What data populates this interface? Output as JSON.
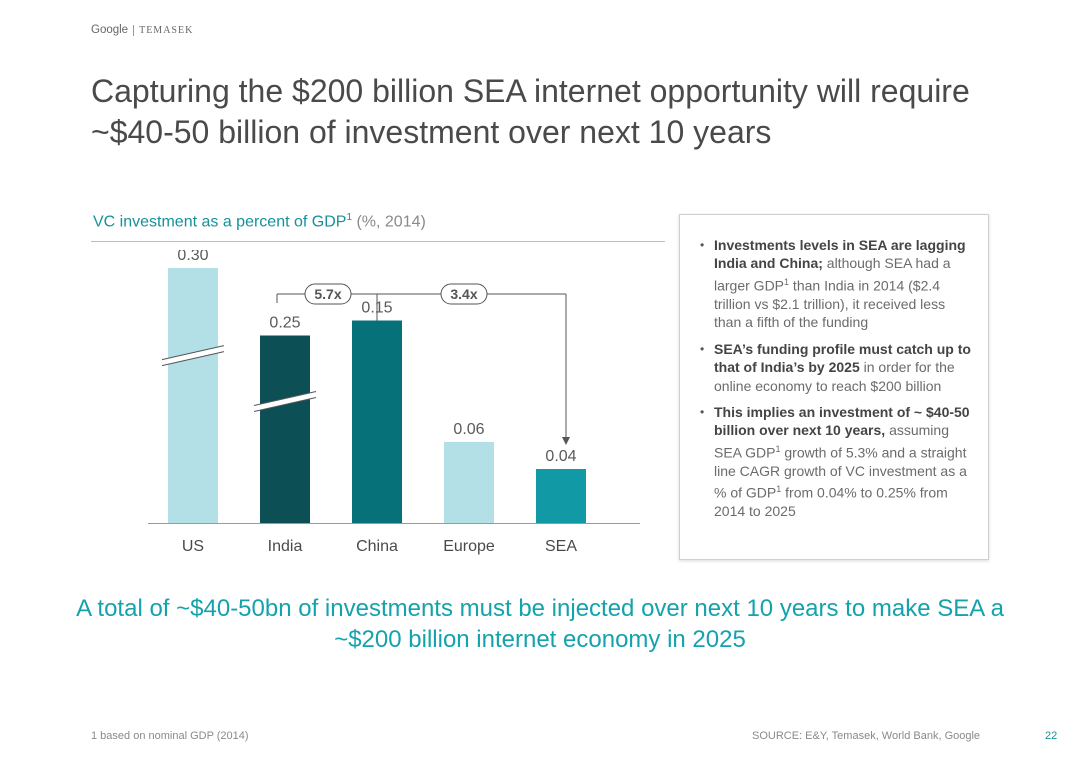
{
  "header": {
    "google": "Google",
    "temasek": "TEMASEK"
  },
  "title": "Capturing the $200 billion SEA internet opportunity will require ~$40-50 billion of investment over next 10 years",
  "chart_title": {
    "main": "VC investment as a percent of GDP",
    "sup": "1",
    "unit": " (%, 2014)"
  },
  "chart_data": {
    "type": "bar",
    "title": "VC investment as a percent of GDP1 (%, 2014)",
    "categories": [
      "US",
      "India",
      "China",
      "Europe",
      "SEA"
    ],
    "values": [
      0.3,
      0.25,
      0.15,
      0.06,
      0.04
    ],
    "labels": [
      "0.30",
      "0.25",
      "0.15",
      "0.06",
      "0.04"
    ],
    "colors": [
      "#b3dfe6",
      "#0c4f55",
      "#077179",
      "#b3dfe6",
      "#119aa6"
    ],
    "axis_breaks": [
      "US",
      "India"
    ],
    "annotations": [
      {
        "from": "India",
        "to": "China",
        "label": "5.7x"
      },
      {
        "from": "China",
        "to": "SEA",
        "label": "3.4x"
      }
    ]
  },
  "bullets": [
    {
      "bold": "Investments levels in SEA are lagging India and China;",
      "rest_parts": [
        " although SEA had a larger GDP",
        "1",
        " than India in 2014 ($2.4 trillion vs $2.1 trillion), it received less than a fifth of the funding"
      ]
    },
    {
      "bold": "SEA’s funding profile must catch up to that of India’s by 2025",
      "rest_parts": [
        " in order for the online economy to reach $200 billion"
      ]
    },
    {
      "bold": "This implies an investment of ~ $40-50 billion over next 10 years,",
      "rest_parts": [
        " assuming SEA GDP",
        "1",
        " growth of 5.3% and a straight line CAGR growth of VC investment as a % of GDP",
        "1",
        " from 0.04% to 0.25% from 2014 to 2025"
      ]
    }
  ],
  "takeaway": "A total of ~$40-50bn of investments must be injected over next 10 years to make SEA a ~$200 billion internet economy in 2025",
  "footnote": "1 based on nominal GDP (2014)",
  "source": "SOURCE: E&Y, Temasek, World Bank, Google",
  "page_number": "22"
}
